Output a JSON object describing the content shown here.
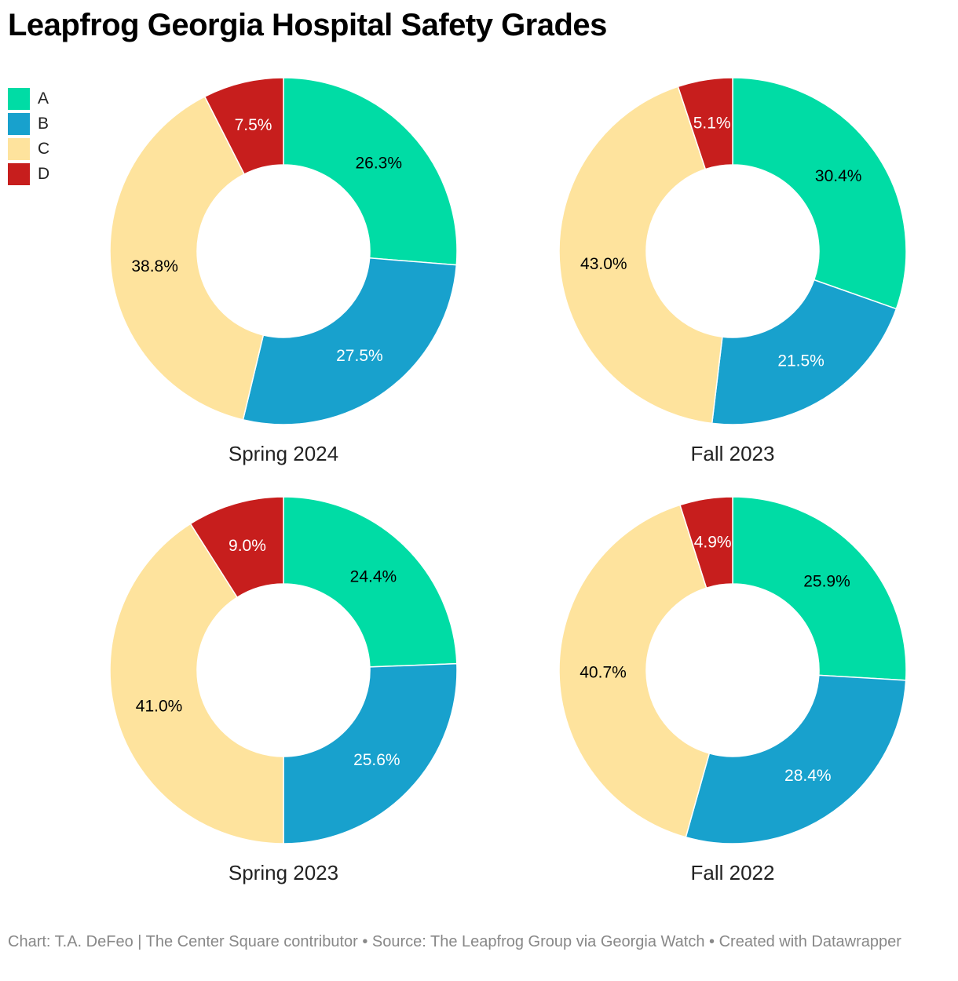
{
  "title": "Leapfrog Georgia Hospital Safety Grades",
  "legend": [
    {
      "label": "A",
      "color": "#00dca5"
    },
    {
      "label": "B",
      "color": "#18a1cd"
    },
    {
      "label": "C",
      "color": "#fee39d"
    },
    {
      "label": "D",
      "color": "#c71e1d"
    }
  ],
  "chart_data": {
    "type": "pie",
    "subtype": "donut",
    "categories": [
      "A",
      "B",
      "C",
      "D"
    ],
    "colors": [
      "#00dca5",
      "#18a1cd",
      "#fee39d",
      "#c71e1d"
    ],
    "label_colors": [
      "#000000",
      "#ffffff",
      "#000000",
      "#ffffff"
    ],
    "charts": [
      {
        "title": "Spring 2024",
        "values": [
          26.3,
          27.5,
          38.8,
          7.5
        ],
        "labels": [
          "26.3%",
          "27.5%",
          "38.8%",
          "7.5%"
        ]
      },
      {
        "title": "Fall 2023",
        "values": [
          30.4,
          21.5,
          43.0,
          5.1
        ],
        "labels": [
          "30.4%",
          "21.5%",
          "43.0%",
          "5.1%"
        ]
      },
      {
        "title": "Spring 2023",
        "values": [
          24.4,
          25.6,
          41.0,
          9.0
        ],
        "labels": [
          "24.4%",
          "25.6%",
          "41.0%",
          "9.0%"
        ]
      },
      {
        "title": "Fall 2022",
        "values": [
          25.9,
          28.4,
          40.7,
          4.9
        ],
        "labels": [
          "25.9%",
          "28.4%",
          "40.7%",
          "4.9%"
        ]
      }
    ]
  },
  "footer": "Chart: T.A. DeFeo | The Center Square contributor • Source: The Leapfrog Group via Georgia Watch • Created with Datawrapper"
}
